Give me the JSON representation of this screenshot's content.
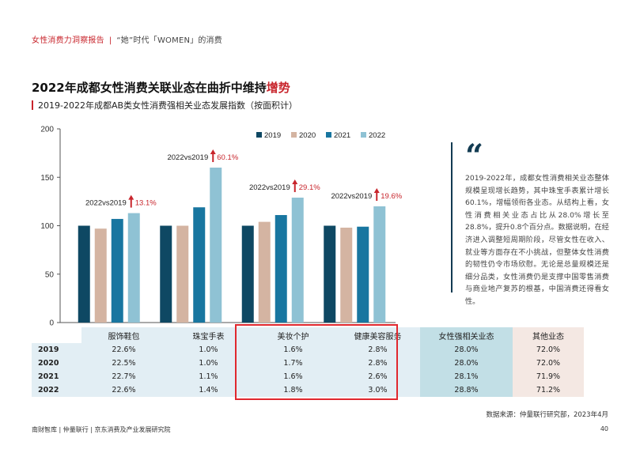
{
  "header": {
    "brand": "女性消费力洞察报告",
    "separator": "|",
    "subtitle": "“她”时代「WOMEN」的消费"
  },
  "title": {
    "main": "2022年成都女性消费关联业态在曲折中维持",
    "highlight": "增势"
  },
  "chart_subtitle": "2019-2022年成都AB类女性消费强相关业态发展指数（按面积计）",
  "chart_data": {
    "type": "bar",
    "categories": [
      "服饰鞋包",
      "珠宝手表",
      "美妆个护",
      "健康美容服务"
    ],
    "series": [
      {
        "name": "2019",
        "values": [
          100,
          100,
          100,
          100
        ]
      },
      {
        "name": "2020",
        "values": [
          97,
          100,
          104,
          98
        ]
      },
      {
        "name": "2021",
        "values": [
          107,
          119,
          111,
          99
        ]
      },
      {
        "name": "2022",
        "values": [
          113,
          160,
          129,
          120
        ]
      }
    ],
    "ylim": [
      0,
      200
    ],
    "yticks": [
      0,
      50,
      100,
      150,
      200
    ],
    "colors": [
      "#0e4863",
      "#d4b4a2",
      "#1876a0",
      "#8fc2d4"
    ],
    "legend_position": "top",
    "annotations": [
      {
        "label": "2022vs2019",
        "value": "13.1%"
      },
      {
        "label": "2022vs2019",
        "value": "60.1%"
      },
      {
        "label": "2022vs2019",
        "value": "29.1%"
      },
      {
        "label": "2022vs2019",
        "value": "19.6%"
      }
    ],
    "annotation_color": "#c8252c"
  },
  "description": "2019-2022年，成都女性消费相关业态整体规模呈现增长趋势，其中珠宝手表累计增长60.1%，增幅领衔各业态。从结构上看，女性消费相关业态占比从28.0%增长至28.8%，提升0.8个百分点。数据说明，在经济进入调整短周期阶段，尽管女性在收入、就业等方面存在不小挑战，但整体女性消费的韧性仍令市场欣慰。无论是总量规模还是细分品类，女性消费仍是支撑中国零售消费与商业地产复苏的根基，中国消费还得看女性。",
  "table": {
    "headers": [
      "",
      "服饰鞋包",
      "珠宝手表",
      "美妆个护",
      "健康美容服务",
      "女性强相关业态",
      "其他业态"
    ],
    "rows": [
      [
        "2019",
        "22.6%",
        "1.0%",
        "1.6%",
        "2.8%",
        "28.0%",
        "72.0%"
      ],
      [
        "2020",
        "22.5%",
        "1.0%",
        "1.7%",
        "2.8%",
        "28.0%",
        "72.0%"
      ],
      [
        "2021",
        "22.7%",
        "1.1%",
        "1.6%",
        "2.6%",
        "28.1%",
        "71.9%"
      ],
      [
        "2022",
        "22.6%",
        "1.4%",
        "1.8%",
        "3.0%",
        "28.8%",
        "71.2%"
      ]
    ]
  },
  "source": "数据来源：仲量联行研究部，2023年4月",
  "footer": "南财智库 | 仲量联行 | 京东消费及产业发展研究院",
  "page_number": "40"
}
